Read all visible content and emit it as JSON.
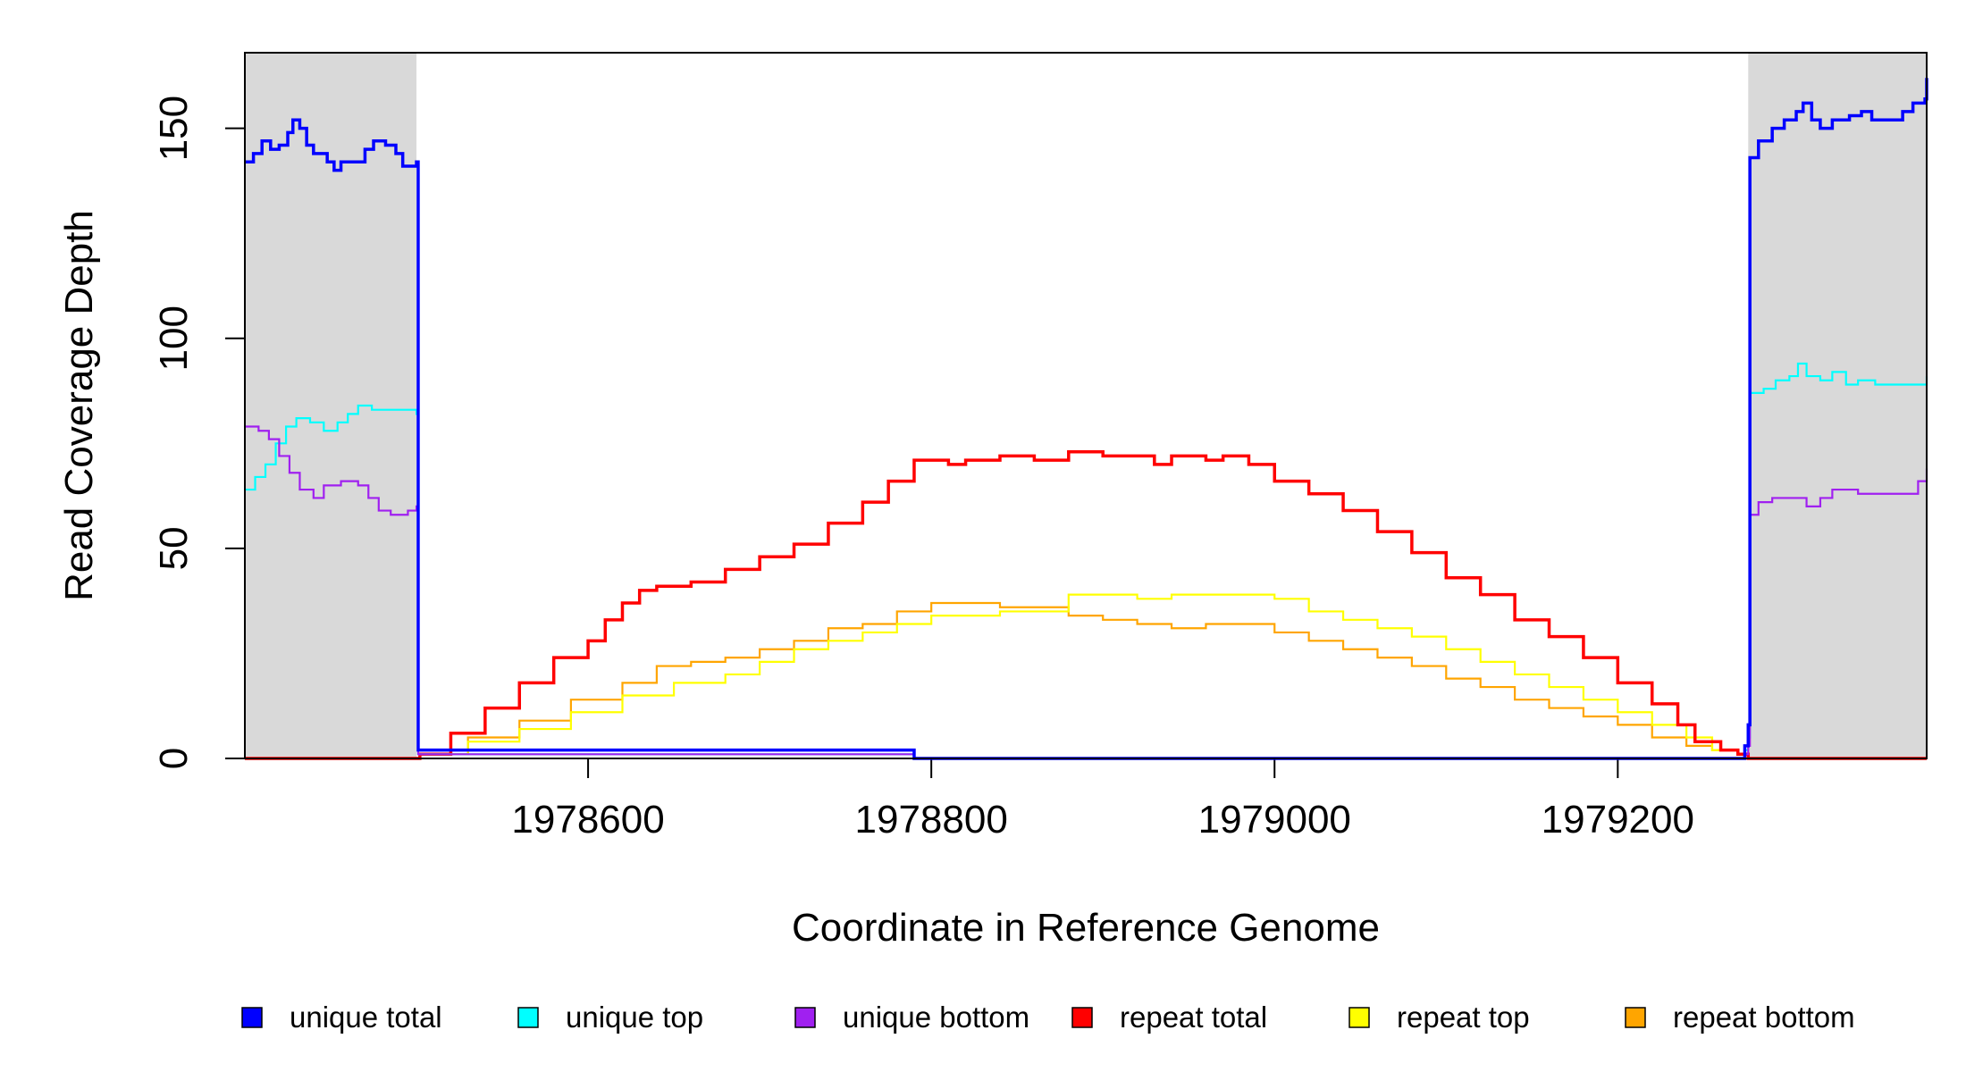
{
  "chart_data": {
    "type": "line",
    "xlabel": "Coordinate in Reference Genome",
    "ylabel": "Read Coverage Depth",
    "xlim": [
      1978400,
      1979380
    ],
    "ylim": [
      0,
      168
    ],
    "x_ticks": [
      1978600,
      1978800,
      1979000,
      1979200
    ],
    "x_tick_labels": [
      "1978600",
      "1978800",
      "1979000",
      "1979200"
    ],
    "y_ticks": [
      0,
      50,
      100,
      150
    ],
    "y_tick_labels": [
      "0",
      "50",
      "100",
      "150"
    ],
    "shaded_regions": [
      {
        "x0": 1978400,
        "x1": 1978500,
        "color": "#d9d9d9"
      },
      {
        "x0": 1979276,
        "x1": 1979380,
        "color": "#d9d9d9"
      }
    ],
    "legend_position": "bottom",
    "series": [
      {
        "name": "unique total",
        "color": "#0000ff",
        "width": 3.5,
        "points": [
          [
            1978400,
            142
          ],
          [
            1978405,
            144
          ],
          [
            1978410,
            147
          ],
          [
            1978415,
            145
          ],
          [
            1978420,
            146
          ],
          [
            1978425,
            149
          ],
          [
            1978428,
            152
          ],
          [
            1978432,
            150
          ],
          [
            1978436,
            146
          ],
          [
            1978440,
            144
          ],
          [
            1978448,
            142
          ],
          [
            1978452,
            140
          ],
          [
            1978456,
            142
          ],
          [
            1978465,
            142
          ],
          [
            1978470,
            145
          ],
          [
            1978475,
            147
          ],
          [
            1978482,
            146
          ],
          [
            1978488,
            144
          ],
          [
            1978492,
            141
          ],
          [
            1978500,
            142
          ],
          [
            1978501,
            2
          ],
          [
            1978785,
            2
          ],
          [
            1978790,
            0
          ],
          [
            1979270,
            0
          ],
          [
            1979274,
            3
          ],
          [
            1979276,
            8
          ],
          [
            1979277,
            143
          ],
          [
            1979282,
            147
          ],
          [
            1979290,
            150
          ],
          [
            1979297,
            152
          ],
          [
            1979304,
            154
          ],
          [
            1979308,
            156
          ],
          [
            1979313,
            152
          ],
          [
            1979318,
            150
          ],
          [
            1979325,
            152
          ],
          [
            1979335,
            153
          ],
          [
            1979342,
            154
          ],
          [
            1979348,
            152
          ],
          [
            1979360,
            152
          ],
          [
            1979366,
            154
          ],
          [
            1979372,
            156
          ],
          [
            1979379,
            157
          ],
          [
            1979380,
            162
          ]
        ]
      },
      {
        "name": "unique top",
        "color": "#00ffff",
        "width": 2.2,
        "points": [
          [
            1978400,
            64
          ],
          [
            1978406,
            67
          ],
          [
            1978412,
            70
          ],
          [
            1978418,
            75
          ],
          [
            1978424,
            79
          ],
          [
            1978430,
            81
          ],
          [
            1978438,
            80
          ],
          [
            1978446,
            78
          ],
          [
            1978454,
            80
          ],
          [
            1978460,
            82
          ],
          [
            1978466,
            84
          ],
          [
            1978474,
            83
          ],
          [
            1978482,
            83
          ],
          [
            1978490,
            83
          ],
          [
            1978500,
            82
          ],
          [
            1978501,
            1
          ],
          [
            1978785,
            1
          ],
          [
            1978790,
            0
          ],
          [
            1979270,
            0
          ],
          [
            1979274,
            2
          ],
          [
            1979276,
            5
          ],
          [
            1979277,
            87
          ],
          [
            1979285,
            88
          ],
          [
            1979292,
            90
          ],
          [
            1979300,
            91
          ],
          [
            1979305,
            94
          ],
          [
            1979310,
            91
          ],
          [
            1979318,
            90
          ],
          [
            1979325,
            92
          ],
          [
            1979333,
            89
          ],
          [
            1979340,
            90
          ],
          [
            1979350,
            89
          ],
          [
            1979370,
            89
          ],
          [
            1979380,
            91
          ]
        ]
      },
      {
        "name": "unique bottom",
        "color": "#a020f0",
        "width": 2.2,
        "points": [
          [
            1978400,
            79
          ],
          [
            1978408,
            78
          ],
          [
            1978414,
            76
          ],
          [
            1978420,
            72
          ],
          [
            1978426,
            68
          ],
          [
            1978432,
            64
          ],
          [
            1978440,
            62
          ],
          [
            1978446,
            65
          ],
          [
            1978456,
            66
          ],
          [
            1978466,
            65
          ],
          [
            1978472,
            62
          ],
          [
            1978478,
            59
          ],
          [
            1978485,
            58
          ],
          [
            1978495,
            59
          ],
          [
            1978500,
            60
          ],
          [
            1978501,
            1
          ],
          [
            1978785,
            1
          ],
          [
            1978790,
            0
          ],
          [
            1979270,
            0
          ],
          [
            1979274,
            1
          ],
          [
            1979276,
            3
          ],
          [
            1979277,
            58
          ],
          [
            1979282,
            61
          ],
          [
            1979290,
            62
          ],
          [
            1979300,
            62
          ],
          [
            1979310,
            60
          ],
          [
            1979318,
            62
          ],
          [
            1979325,
            64
          ],
          [
            1979340,
            63
          ],
          [
            1979355,
            63
          ],
          [
            1979365,
            63
          ],
          [
            1979375,
            66
          ],
          [
            1979380,
            69
          ]
        ]
      },
      {
        "name": "repeat total",
        "color": "#ff0000",
        "width": 3.5,
        "points": [
          [
            1978400,
            0
          ],
          [
            1978500,
            0
          ],
          [
            1978502,
            1
          ],
          [
            1978520,
            6
          ],
          [
            1978540,
            12
          ],
          [
            1978560,
            18
          ],
          [
            1978580,
            24
          ],
          [
            1978600,
            28
          ],
          [
            1978610,
            33
          ],
          [
            1978620,
            37
          ],
          [
            1978630,
            40
          ],
          [
            1978640,
            41
          ],
          [
            1978660,
            42
          ],
          [
            1978680,
            45
          ],
          [
            1978700,
            48
          ],
          [
            1978720,
            51
          ],
          [
            1978740,
            56
          ],
          [
            1978760,
            61
          ],
          [
            1978775,
            66
          ],
          [
            1978790,
            71
          ],
          [
            1978800,
            71
          ],
          [
            1978810,
            70
          ],
          [
            1978820,
            71
          ],
          [
            1978840,
            72
          ],
          [
            1978860,
            71
          ],
          [
            1978880,
            73
          ],
          [
            1978900,
            72
          ],
          [
            1978920,
            72
          ],
          [
            1978930,
            70
          ],
          [
            1978940,
            72
          ],
          [
            1978960,
            71
          ],
          [
            1978970,
            72
          ],
          [
            1978985,
            70
          ],
          [
            1979000,
            66
          ],
          [
            1979020,
            63
          ],
          [
            1979040,
            59
          ],
          [
            1979060,
            54
          ],
          [
            1979080,
            49
          ],
          [
            1979100,
            43
          ],
          [
            1979120,
            39
          ],
          [
            1979140,
            33
          ],
          [
            1979160,
            29
          ],
          [
            1979180,
            24
          ],
          [
            1979200,
            18
          ],
          [
            1979220,
            13
          ],
          [
            1979235,
            8
          ],
          [
            1979245,
            4
          ],
          [
            1979260,
            2
          ],
          [
            1979270,
            1
          ],
          [
            1979276,
            0
          ],
          [
            1979380,
            0
          ]
        ]
      },
      {
        "name": "repeat top",
        "color": "#ffff00",
        "width": 2.2,
        "points": [
          [
            1978400,
            0
          ],
          [
            1978500,
            0
          ],
          [
            1978502,
            1
          ],
          [
            1978530,
            4
          ],
          [
            1978560,
            7
          ],
          [
            1978590,
            11
          ],
          [
            1978620,
            15
          ],
          [
            1978650,
            18
          ],
          [
            1978680,
            20
          ],
          [
            1978700,
            23
          ],
          [
            1978720,
            26
          ],
          [
            1978740,
            28
          ],
          [
            1978760,
            30
          ],
          [
            1978780,
            32
          ],
          [
            1978800,
            34
          ],
          [
            1978820,
            34
          ],
          [
            1978840,
            35
          ],
          [
            1978860,
            35
          ],
          [
            1978880,
            39
          ],
          [
            1978900,
            39
          ],
          [
            1978920,
            38
          ],
          [
            1978940,
            39
          ],
          [
            1978960,
            39
          ],
          [
            1978980,
            39
          ],
          [
            1979000,
            38
          ],
          [
            1979020,
            35
          ],
          [
            1979040,
            33
          ],
          [
            1979060,
            31
          ],
          [
            1979080,
            29
          ],
          [
            1979100,
            26
          ],
          [
            1979120,
            23
          ],
          [
            1979140,
            20
          ],
          [
            1979160,
            17
          ],
          [
            1979180,
            14
          ],
          [
            1979200,
            11
          ],
          [
            1979220,
            8
          ],
          [
            1979240,
            5
          ],
          [
            1979255,
            2
          ],
          [
            1979270,
            1
          ],
          [
            1979276,
            0
          ],
          [
            1979380,
            0
          ]
        ]
      },
      {
        "name": "repeat bottom",
        "color": "#ffa500",
        "width": 2.2,
        "points": [
          [
            1978400,
            0
          ],
          [
            1978500,
            0
          ],
          [
            1978502,
            1
          ],
          [
            1978530,
            5
          ],
          [
            1978560,
            9
          ],
          [
            1978590,
            14
          ],
          [
            1978620,
            18
          ],
          [
            1978640,
            22
          ],
          [
            1978660,
            23
          ],
          [
            1978680,
            24
          ],
          [
            1978700,
            26
          ],
          [
            1978720,
            28
          ],
          [
            1978740,
            31
          ],
          [
            1978760,
            32
          ],
          [
            1978780,
            35
          ],
          [
            1978800,
            37
          ],
          [
            1978820,
            37
          ],
          [
            1978840,
            36
          ],
          [
            1978860,
            36
          ],
          [
            1978880,
            34
          ],
          [
            1978900,
            33
          ],
          [
            1978920,
            32
          ],
          [
            1978940,
            31
          ],
          [
            1978960,
            32
          ],
          [
            1978980,
            32
          ],
          [
            1979000,
            30
          ],
          [
            1979020,
            28
          ],
          [
            1979040,
            26
          ],
          [
            1979060,
            24
          ],
          [
            1979080,
            22
          ],
          [
            1979100,
            19
          ],
          [
            1979120,
            17
          ],
          [
            1979140,
            14
          ],
          [
            1979160,
            12
          ],
          [
            1979180,
            10
          ],
          [
            1979200,
            8
          ],
          [
            1979220,
            5
          ],
          [
            1979240,
            3
          ],
          [
            1979255,
            2
          ],
          [
            1979270,
            1
          ],
          [
            1979276,
            0
          ],
          [
            1979380,
            0
          ]
        ]
      }
    ]
  }
}
